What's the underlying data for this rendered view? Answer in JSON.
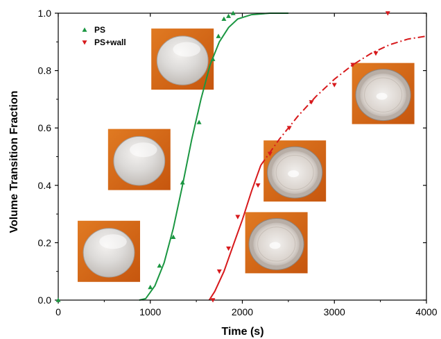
{
  "chart_data": {
    "type": "scatter",
    "xlabel": "Time (s)",
    "ylabel": "Volume Transition Fraction",
    "xlim": [
      0,
      4000
    ],
    "ylim": [
      0,
      1.0
    ],
    "x_ticks": [
      "0",
      "1000",
      "2000",
      "3000",
      "4000"
    ],
    "y_ticks": [
      "0.0",
      "0.2",
      "0.4",
      "0.6",
      "0.8",
      "1.0"
    ],
    "grid": false,
    "legend_position": "top-left",
    "series": [
      {
        "name": "PS",
        "color": "#1a9641",
        "marker": "triangle-up",
        "points": [
          [
            0,
            0.0
          ],
          [
            1000,
            0.045
          ],
          [
            1100,
            0.12
          ],
          [
            1250,
            0.22
          ],
          [
            1350,
            0.41
          ],
          [
            1530,
            0.62
          ],
          [
            1680,
            0.84
          ],
          [
            1740,
            0.92
          ],
          [
            1800,
            0.98
          ],
          [
            1850,
            0.99
          ],
          [
            1900,
            1.0
          ]
        ],
        "fit": {
          "style": "solid",
          "points": [
            [
              880,
              0.0
            ],
            [
              950,
              0.005
            ],
            [
              1050,
              0.05
            ],
            [
              1150,
              0.13
            ],
            [
              1250,
              0.25
            ],
            [
              1350,
              0.4
            ],
            [
              1450,
              0.56
            ],
            [
              1550,
              0.7
            ],
            [
              1650,
              0.82
            ],
            [
              1750,
              0.9
            ],
            [
              1850,
              0.95
            ],
            [
              1950,
              0.98
            ],
            [
              2100,
              0.995
            ],
            [
              2300,
              1.0
            ],
            [
              2500,
              1.0
            ]
          ]
        }
      },
      {
        "name": "PS+wall",
        "color": "#d7191c",
        "marker": "triangle-down",
        "points": [
          [
            1680,
            0.0
          ],
          [
            1750,
            0.1
          ],
          [
            1850,
            0.18
          ],
          [
            1950,
            0.29
          ],
          [
            2170,
            0.4
          ],
          [
            2300,
            0.51
          ],
          [
            2510,
            0.6
          ],
          [
            2750,
            0.69
          ],
          [
            3000,
            0.75
          ],
          [
            3200,
            0.82
          ],
          [
            3450,
            0.86
          ],
          [
            3580,
            1.0
          ]
        ],
        "fit": {
          "segments": [
            {
              "style": "solid",
              "points": [
                [
                  1640,
                  0.0
                ],
                [
                  1700,
                  0.03
                ],
                [
                  1800,
                  0.1
                ],
                [
                  1900,
                  0.19
                ],
                [
                  2000,
                  0.28
                ],
                [
                  2100,
                  0.38
                ],
                [
                  2200,
                  0.47
                ]
              ]
            },
            {
              "style": "dash-dot",
              "points": [
                [
                  2200,
                  0.47
                ],
                [
                  2400,
                  0.56
                ],
                [
                  2600,
                  0.64
                ],
                [
                  2800,
                  0.71
                ],
                [
                  3000,
                  0.77
                ],
                [
                  3200,
                  0.82
                ],
                [
                  3400,
                  0.86
                ],
                [
                  3600,
                  0.89
                ],
                [
                  3800,
                  0.91
                ],
                [
                  4000,
                  0.92
                ]
              ]
            }
          ]
        }
      }
    ],
    "insets": [
      {
        "kind": "photo",
        "subject": "PS sample",
        "x": 1350,
        "y": 0.84
      },
      {
        "kind": "photo",
        "subject": "PS sample",
        "x": 880,
        "y": 0.49
      },
      {
        "kind": "photo",
        "subject": "PS sample",
        "x": 550,
        "y": 0.17
      },
      {
        "kind": "photo",
        "subject": "PS+wall sample",
        "x": 2370,
        "y": 0.2
      },
      {
        "kind": "photo",
        "subject": "PS+wall sample",
        "x": 2570,
        "y": 0.45
      },
      {
        "kind": "photo",
        "subject": "PS+wall sample",
        "x": 3530,
        "y": 0.72
      }
    ]
  }
}
